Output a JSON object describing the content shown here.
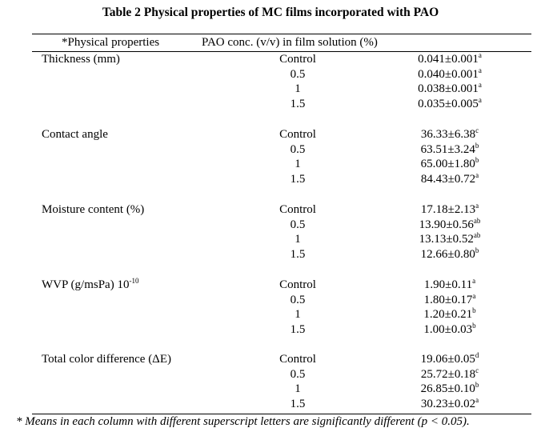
{
  "title": "Table 2 Physical properties of MC films incorporated with PAO",
  "header": {
    "col1": "*Physical properties",
    "col2": "PAO conc. (v/v) in film solution (%)"
  },
  "groups": [
    {
      "label": "Thickness (mm)",
      "rows": [
        {
          "conc": "Control",
          "value": "0.041±0.001",
          "sup": "a"
        },
        {
          "conc": "0.5",
          "value": "0.040±0.001",
          "sup": "a"
        },
        {
          "conc": "1",
          "value": "0.038±0.001",
          "sup": "a"
        },
        {
          "conc": "1.5",
          "value": "0.035±0.005",
          "sup": "a"
        }
      ]
    },
    {
      "label": "Contact angle",
      "rows": [
        {
          "conc": "Control",
          "value": "36.33±6.38",
          "sup": "c"
        },
        {
          "conc": "0.5",
          "value": "63.51±3.24",
          "sup": "b"
        },
        {
          "conc": "1",
          "value": "65.00±1.80",
          "sup": "b"
        },
        {
          "conc": "1.5",
          "value": "84.43±0.72",
          "sup": "a"
        }
      ]
    },
    {
      "label": "Moisture content (%)",
      "rows": [
        {
          "conc": "Control",
          "value": "17.18±2.13",
          "sup": "a"
        },
        {
          "conc": "0.5",
          "value": "13.90±0.56",
          "sup": "ab"
        },
        {
          "conc": "1",
          "value": "13.13±0.52",
          "sup": "ab"
        },
        {
          "conc": "1.5",
          "value": "12.66±0.80",
          "sup": "b"
        }
      ]
    },
    {
      "label": "WVP (g/msPa) 10",
      "label_sup": "-10",
      "rows": [
        {
          "conc": "Control",
          "value": "1.90±0.11",
          "sup": "a"
        },
        {
          "conc": "0.5",
          "value": "1.80±0.17",
          "sup": "a"
        },
        {
          "conc": "1",
          "value": "1.20±0.21",
          "sup": "b"
        },
        {
          "conc": "1.5",
          "value": "1.00±0.03",
          "sup": "b"
        }
      ]
    },
    {
      "label": "Total color difference (ΔE)",
      "rows": [
        {
          "conc": "Control",
          "value": "19.06±0.05",
          "sup": "d"
        },
        {
          "conc": "0.5",
          "value": "25.72±0.18",
          "sup": "c"
        },
        {
          "conc": "1",
          "value": "26.85±0.10",
          "sup": "b"
        },
        {
          "conc": "1.5",
          "value": "30.23±0.02",
          "sup": "a"
        }
      ]
    }
  ],
  "footnote": "* Means in each column with different superscript letters are significantly different (p < 0.05)."
}
